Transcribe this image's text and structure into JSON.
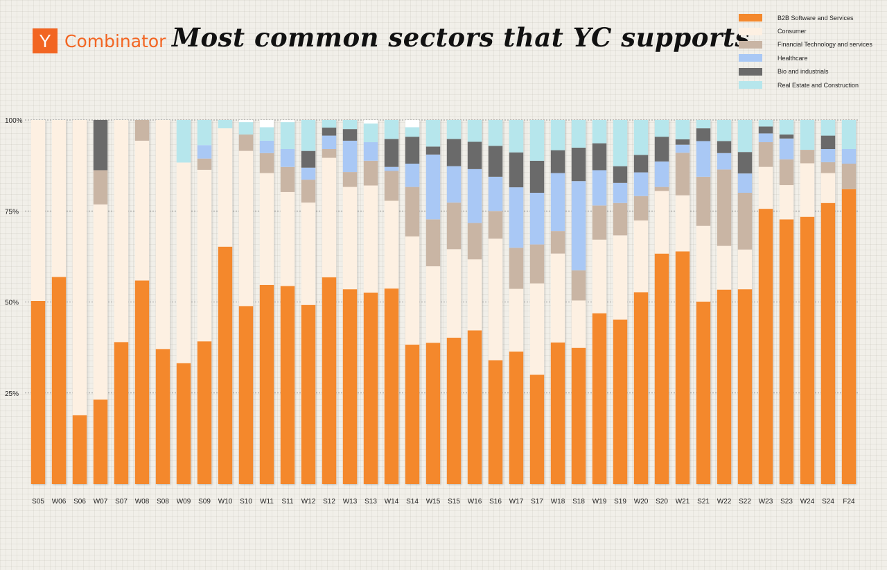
{
  "header": {
    "logo_letter": "Y",
    "logo_word": "Combinator",
    "title": "Most common sectors that YC supports"
  },
  "colors": {
    "b2b": "#f4882c",
    "consumer": "#fdf0e2",
    "fintech": "#c9b5a4",
    "healthcare": "#a9c8f5",
    "bio": "#6a6a6a",
    "realestate": "#b6e6ec",
    "brand": "#f26522"
  },
  "chart_data": {
    "type": "bar",
    "stacked": true,
    "title": "Most common sectors that YC supports",
    "xlabel": "",
    "ylabel": "",
    "ylim": [
      0,
      100
    ],
    "y_ticks": [
      {
        "value": 100,
        "label": "100%"
      },
      {
        "value": 75,
        "label": "75%"
      },
      {
        "value": 50,
        "label": "50%"
      },
      {
        "value": 25,
        "label": "25%"
      }
    ],
    "legend_position": "top-right",
    "categories": [
      "S05",
      "W06",
      "S06",
      "W07",
      "S07",
      "W08",
      "S08",
      "W09",
      "S09",
      "W10",
      "S10",
      "W11",
      "S11",
      "W12",
      "S12",
      "W13",
      "S13",
      "W14",
      "S14",
      "W15",
      "S15",
      "W16",
      "S16",
      "W17",
      "S17",
      "W18",
      "S18",
      "W19",
      "S19",
      "W20",
      "S20",
      "W21",
      "S21",
      "W22",
      "S22",
      "W23",
      "S23",
      "W24",
      "S24",
      "F24"
    ],
    "series": [
      {
        "name": "B2B Software and Services",
        "color_key": "b2b",
        "values": [
          50.3,
          56.9,
          18.9,
          23.2,
          39,
          55.9,
          37.1,
          33.2,
          39.2,
          65.2,
          48.9,
          54.7,
          54.4,
          49.2,
          56.8,
          53.5,
          52.6,
          53.7,
          38.3,
          38.8,
          40.2,
          42.2,
          34,
          36.4,
          30,
          38.9,
          37.4,
          46.9,
          45.2,
          52.7,
          63.3,
          63.9,
          50.1,
          53.4,
          53.5,
          75.6,
          72.7,
          73.4,
          77.2,
          81
        ]
      },
      {
        "name": "Consumer",
        "color_key": "consumer",
        "values": [
          49.7,
          43.1,
          81.1,
          53.6,
          61,
          38.4,
          62.9,
          55.1,
          47.1,
          32.5,
          42.6,
          30.7,
          25.8,
          28.1,
          32.8,
          28.1,
          29.4,
          24.1,
          29.7,
          21,
          24.3,
          19.5,
          33.4,
          17.2,
          25.1,
          24.4,
          13,
          20.2,
          23.1,
          19.7,
          17.2,
          15.4,
          20.8,
          12,
          10.9,
          11.5,
          9.4,
          14.7,
          8.2,
          0
        ]
      },
      {
        "name": "Financial Technology and services",
        "color_key": "fintech",
        "values": [
          0,
          0,
          0,
          9.4,
          0,
          5.7,
          0,
          0,
          3.1,
          0,
          4.5,
          5.5,
          6.9,
          6.3,
          2.4,
          4.1,
          6.8,
          8.2,
          13.6,
          12.9,
          12.8,
          10,
          7.6,
          11.3,
          10.7,
          6.2,
          8.3,
          9.4,
          8.9,
          6.7,
          1.1,
          11.7,
          13.5,
          21,
          15.6,
          6.8,
          7.1,
          3.7,
          3,
          7
        ]
      },
      {
        "name": "Healthcare",
        "color_key": "healthcare",
        "values": [
          0,
          0,
          0,
          0,
          0,
          0,
          0,
          0,
          3.7,
          0,
          0,
          3.4,
          4.9,
          3.3,
          3.7,
          8.6,
          5.1,
          1.1,
          6.4,
          17.8,
          10,
          14.8,
          9.4,
          16.6,
          14.2,
          15.9,
          24.5,
          9.7,
          5.5,
          6.5,
          7,
          2.2,
          9.8,
          4.5,
          5.3,
          2.4,
          5.7,
          0,
          3.6,
          4
        ]
      },
      {
        "name": "Bio and industrials",
        "color_key": "bio",
        "values": [
          0,
          0,
          0,
          13.8,
          0,
          0,
          0,
          0,
          0,
          0,
          0,
          0,
          0,
          4.6,
          2.2,
          3.2,
          0,
          7.7,
          7.4,
          2.2,
          7.5,
          7.5,
          8.5,
          9.6,
          8.8,
          6.3,
          9.2,
          7.4,
          4.6,
          4.8,
          6.8,
          1.5,
          3.5,
          3.3,
          5.9,
          1.9,
          1.1,
          0,
          3.7,
          0
        ]
      },
      {
        "name": "Real Estate and Construction",
        "color_key": "realestate",
        "values": [
          0,
          0,
          0,
          0,
          0,
          0,
          0,
          11.7,
          6.9,
          2.3,
          3.4,
          3.7,
          7.4,
          8.5,
          2.1,
          2.5,
          5.1,
          5.2,
          2.6,
          7.3,
          5.2,
          6,
          7.1,
          8.9,
          11.2,
          8.3,
          7.6,
          6.4,
          12.7,
          9.6,
          4.6,
          5.3,
          2.3,
          5.8,
          8.8,
          1.8,
          4,
          8.2,
          4.3,
          8
        ]
      }
    ]
  }
}
